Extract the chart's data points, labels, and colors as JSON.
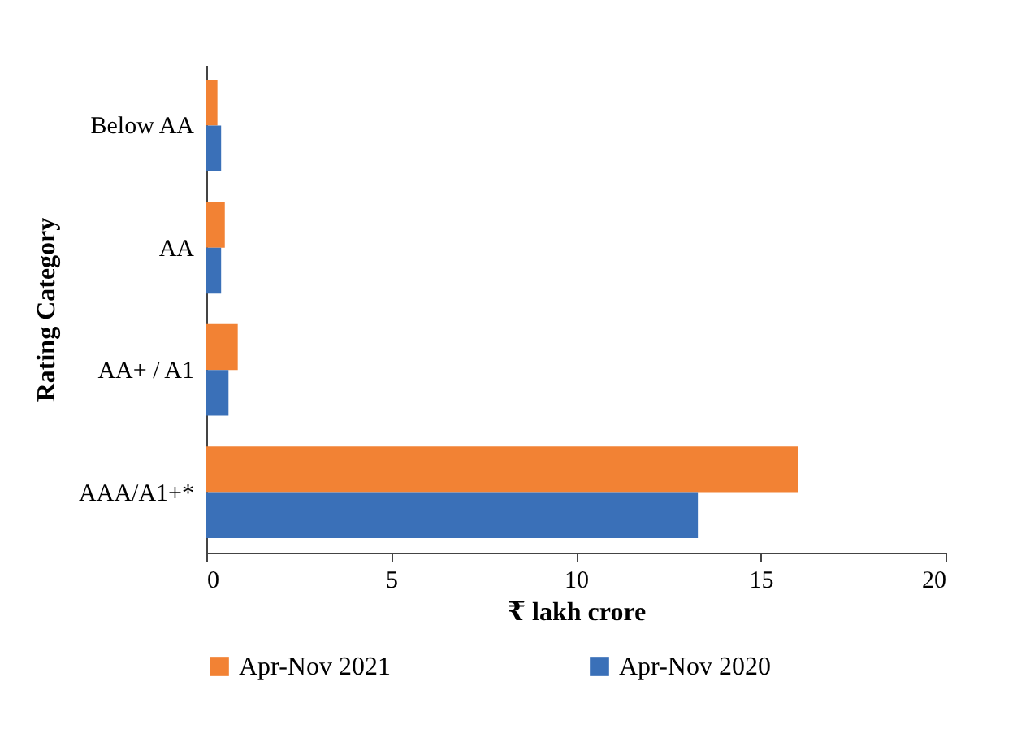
{
  "chart_data": {
    "type": "bar",
    "orientation": "horizontal",
    "xlabel": "₹ lakh crore",
    "ylabel": "Rating Category",
    "categories": [
      "Below AA",
      "AA",
      "AA+ / A1",
      "AAA/A1+*"
    ],
    "series": [
      {
        "name": "Apr-Nov 2021",
        "color": "#f28234",
        "values": [
          0.3,
          0.5,
          0.85,
          16.0
        ]
      },
      {
        "name": "Apr-Nov 2020",
        "color": "#3a70b8",
        "values": [
          0.4,
          0.4,
          0.6,
          13.3
        ]
      }
    ],
    "xlim": [
      0,
      20
    ],
    "xticks": [
      0,
      5,
      10,
      15,
      20
    ],
    "grid": false,
    "legend": "bottom"
  }
}
